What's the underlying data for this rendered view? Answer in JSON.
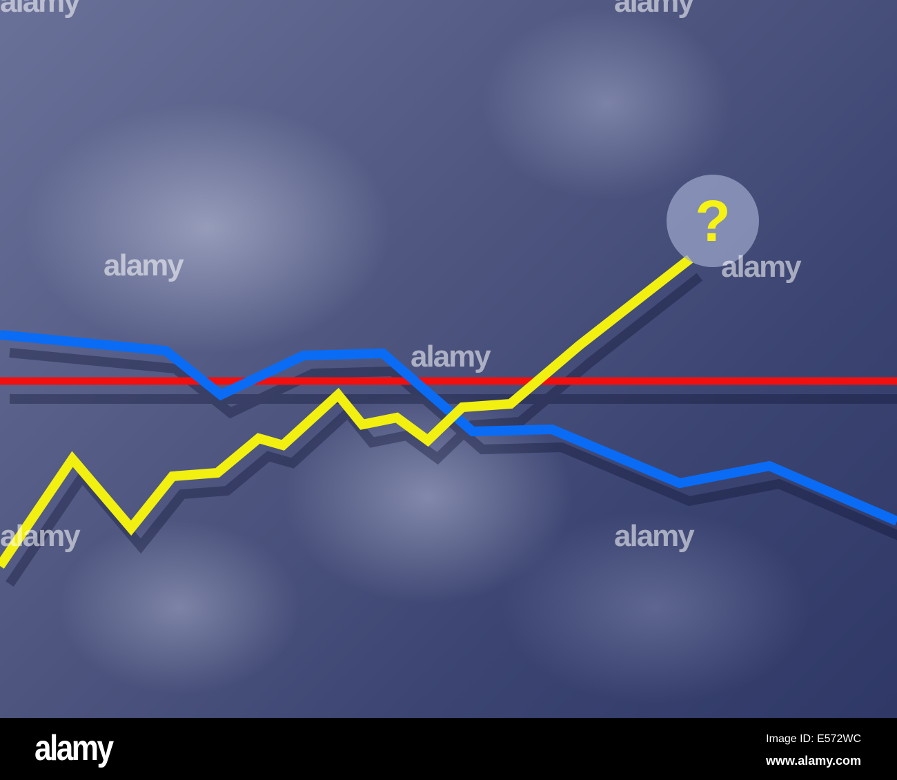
{
  "image": {
    "question_symbol": "?",
    "watermark": "alamy",
    "colors": {
      "rising_line": "#f2f010",
      "falling_line": "#0a6cf5",
      "baseline": "#f01010"
    }
  },
  "footer": {
    "logo": "alamy",
    "image_id": "Image ID: E572WC",
    "website": "www.alamy.com"
  }
}
